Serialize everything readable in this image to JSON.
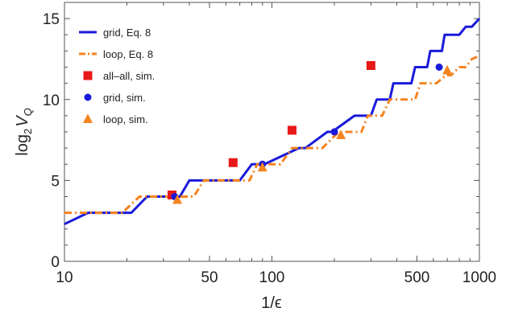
{
  "chart_data": {
    "type": "line",
    "title": "",
    "xlabel": "1/ϵ",
    "ylabel_main": "log",
    "ylabel_sub": "2",
    "ylabel_var": "V",
    "ylabel_var_sub": "Q",
    "x_scale": "log",
    "xlim": [
      10,
      1000
    ],
    "ylim": [
      0,
      16
    ],
    "x_ticks": [
      10,
      50,
      100,
      500,
      1000
    ],
    "x_tick_labels": [
      "10",
      "50",
      "100",
      "500",
      "1000"
    ],
    "y_ticks": [
      0,
      5,
      10,
      15
    ],
    "y_tick_labels": [
      "0",
      "5",
      "10",
      "15"
    ],
    "grid": false,
    "legend_position": "top-left",
    "series": [
      {
        "name": "grid, Eq. 8",
        "style": "solid-line",
        "color": "#1a1adb",
        "x": [
          10,
          13,
          21,
          25,
          36,
          40,
          48,
          52,
          70,
          80,
          88,
          92,
          135,
          145,
          185,
          195,
          250,
          270,
          300,
          320,
          340,
          350,
          370,
          385,
          420,
          440,
          470,
          490,
          510,
          525,
          560,
          580,
          610,
          625,
          660,
          680,
          720,
          760,
          800,
          860,
          920,
          1000
        ],
        "y": [
          2.3,
          3,
          3,
          4,
          4,
          5,
          5,
          5,
          5,
          6,
          6,
          6,
          7,
          7,
          8,
          8,
          9,
          9,
          9,
          10,
          10,
          10,
          10,
          11,
          11,
          11,
          11,
          12,
          12,
          12,
          12,
          13,
          13,
          13,
          13,
          14,
          14,
          14,
          14,
          14.5,
          14.5,
          15
        ]
      },
      {
        "name": "loop, Eq. 8",
        "style": "dashed-line",
        "color": "#f5841f",
        "x": [
          10,
          19,
          23,
          28,
          38,
          42,
          47,
          51,
          70,
          78,
          85,
          92,
          110,
          125,
          150,
          175,
          210,
          230,
          270,
          290,
          340,
          370,
          420,
          440,
          490,
          520,
          580,
          620,
          690,
          730,
          800,
          860,
          920,
          1000
        ],
        "y": [
          3,
          3,
          4,
          4,
          4,
          4,
          5,
          5,
          5,
          5,
          6,
          6,
          6,
          7,
          7,
          7,
          8,
          8,
          8,
          9,
          9,
          10,
          10,
          10,
          10,
          11,
          11,
          11,
          11.5,
          11.5,
          12,
          12,
          12.5,
          12.7
        ]
      },
      {
        "name": "all–all, sim.",
        "style": "square-marker",
        "color": "#e81919",
        "x": [
          33,
          65,
          125,
          300
        ],
        "y": [
          4.1,
          6.1,
          8.1,
          12.1
        ]
      },
      {
        "name": "grid, sim.",
        "style": "circle-marker",
        "color": "#1a1adb",
        "x": [
          34,
          90,
          200,
          640
        ],
        "y": [
          4.0,
          6.0,
          8.0,
          12.0
        ]
      },
      {
        "name": "loop, sim.",
        "style": "triangle-marker",
        "color": "#f5841f",
        "x": [
          35,
          90,
          215,
          700
        ],
        "y": [
          3.8,
          5.8,
          7.8,
          11.8
        ]
      }
    ]
  }
}
